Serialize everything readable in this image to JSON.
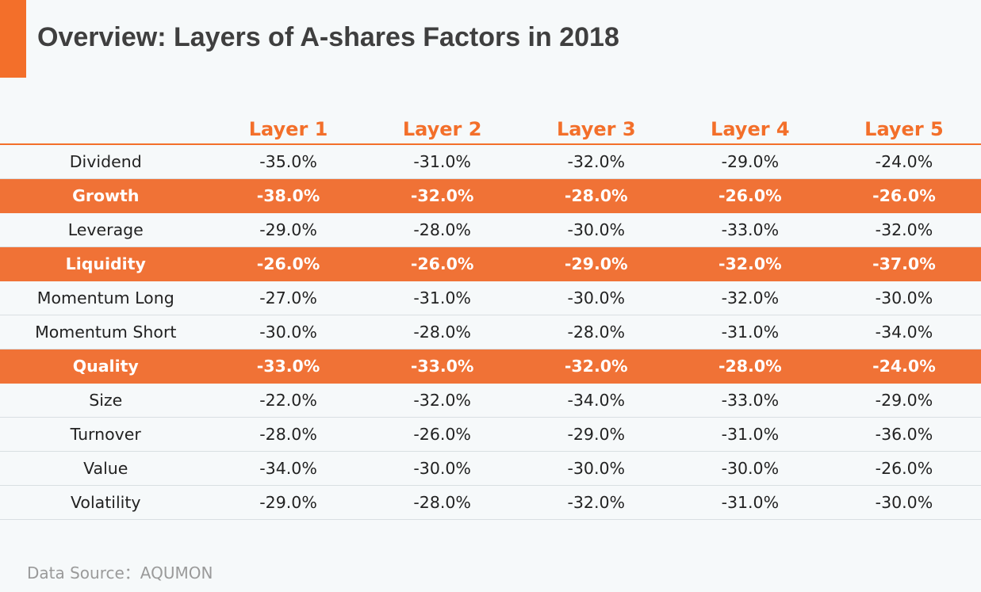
{
  "title": "Overview: Layers of A-shares Factors in 2018",
  "source": "Data Source：AQUMON",
  "colors": {
    "accent": "#f36f2a",
    "highlight_row": "#f07236",
    "background": "#f6f9fa"
  },
  "chart_data": {
    "type": "table",
    "title": "Overview: Layers of A-shares Factors in 2018",
    "columns": [
      "Layer 1",
      "Layer 2",
      "Layer 3",
      "Layer 4",
      "Layer 5"
    ],
    "rows": [
      {
        "factor": "Dividend",
        "highlight": false,
        "values": [
          "-35.0%",
          "-31.0%",
          "-32.0%",
          "-29.0%",
          "-24.0%"
        ]
      },
      {
        "factor": "Growth",
        "highlight": true,
        "values": [
          "-38.0%",
          "-32.0%",
          "-28.0%",
          "-26.0%",
          "-26.0%"
        ]
      },
      {
        "factor": "Leverage",
        "highlight": false,
        "values": [
          "-29.0%",
          "-28.0%",
          "-30.0%",
          "-33.0%",
          "-32.0%"
        ]
      },
      {
        "factor": "Liquidity",
        "highlight": true,
        "values": [
          "-26.0%",
          "-26.0%",
          "-29.0%",
          "-32.0%",
          "-37.0%"
        ]
      },
      {
        "factor": "Momentum Long",
        "highlight": false,
        "values": [
          "-27.0%",
          "-31.0%",
          "-30.0%",
          "-32.0%",
          "-30.0%"
        ]
      },
      {
        "factor": "Momentum Short",
        "highlight": false,
        "values": [
          "-30.0%",
          "-28.0%",
          "-28.0%",
          "-31.0%",
          "-34.0%"
        ]
      },
      {
        "factor": "Quality",
        "highlight": true,
        "values": [
          "-33.0%",
          "-33.0%",
          "-32.0%",
          "-28.0%",
          "-24.0%"
        ]
      },
      {
        "factor": "Size",
        "highlight": false,
        "values": [
          "-22.0%",
          "-32.0%",
          "-34.0%",
          "-33.0%",
          "-29.0%"
        ]
      },
      {
        "factor": "Turnover",
        "highlight": false,
        "values": [
          "-28.0%",
          "-26.0%",
          "-29.0%",
          "-31.0%",
          "-36.0%"
        ]
      },
      {
        "factor": "Value",
        "highlight": false,
        "values": [
          "-34.0%",
          "-30.0%",
          "-30.0%",
          "-30.0%",
          "-26.0%"
        ]
      },
      {
        "factor": "Volatility",
        "highlight": false,
        "values": [
          "-29.0%",
          "-28.0%",
          "-32.0%",
          "-31.0%",
          "-30.0%"
        ]
      }
    ]
  }
}
